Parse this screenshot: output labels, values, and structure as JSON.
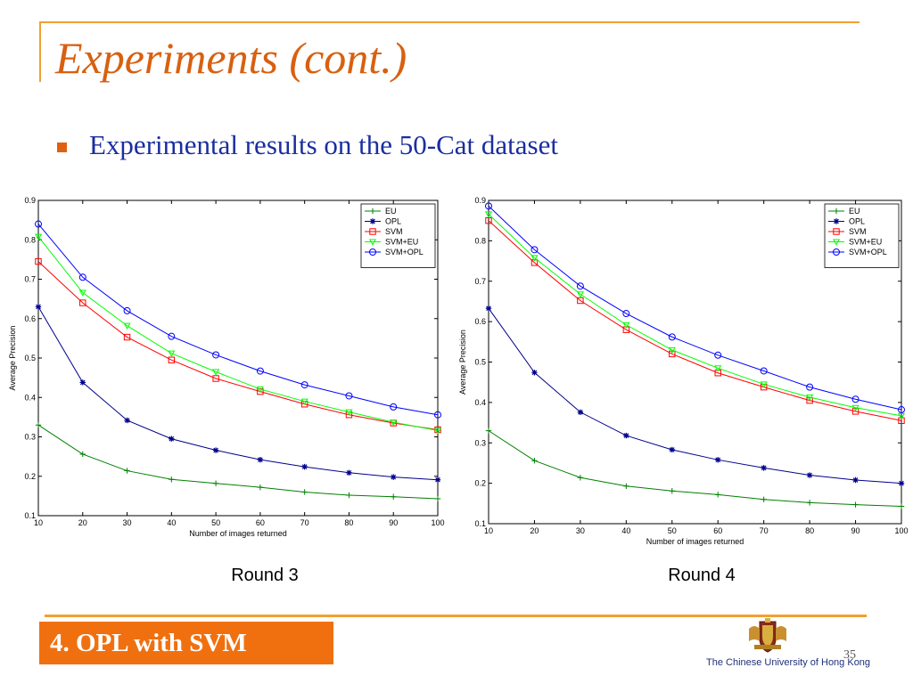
{
  "slide": {
    "title": "Experiments (cont.)",
    "bullet": "Experimental results on the 50-Cat dataset",
    "footer": "4. OPL with SVM",
    "university": "The Chinese University of Hong Kong",
    "page_number": "35"
  },
  "colors": {
    "accent_orange": "#f07010",
    "title_orange": "#d86010",
    "bullet_blue": "#1a2ea0"
  },
  "chart_data": [
    {
      "type": "line",
      "caption": "Round 3",
      "xlabel": "Number of images returned",
      "ylabel": "Average Precision",
      "x": [
        10,
        20,
        30,
        40,
        50,
        60,
        70,
        80,
        90,
        100
      ],
      "xlim": [
        10,
        100
      ],
      "ylim": [
        0.1,
        0.9
      ],
      "yticks": [
        "0.1",
        "0.2",
        "0.3",
        "0.4",
        "0.5",
        "0.6",
        "0.7",
        "0.8",
        "0.9"
      ],
      "xticks": [
        "10",
        "20",
        "30",
        "40",
        "50",
        "60",
        "70",
        "80",
        "90",
        "100"
      ],
      "legend_position": "top-right",
      "series": [
        {
          "name": "EU",
          "color": "#008000",
          "marker": "plus",
          "values": [
            0.33,
            0.256,
            0.214,
            0.192,
            0.182,
            0.172,
            0.16,
            0.152,
            0.148,
            0.143
          ]
        },
        {
          "name": "OPL",
          "color": "#00008b",
          "marker": "star",
          "values": [
            0.63,
            0.438,
            0.342,
            0.295,
            0.266,
            0.242,
            0.224,
            0.209,
            0.198,
            0.191
          ]
        },
        {
          "name": "SVM",
          "color": "#ff0000",
          "marker": "square",
          "values": [
            0.745,
            0.64,
            0.553,
            0.495,
            0.448,
            0.415,
            0.383,
            0.356,
            0.335,
            0.318
          ]
        },
        {
          "name": "SVM+EU",
          "color": "#00ff00",
          "marker": "triangle",
          "values": [
            0.808,
            0.666,
            0.582,
            0.512,
            0.465,
            0.421,
            0.39,
            0.363,
            0.337,
            0.316
          ]
        },
        {
          "name": "SVM+OPL",
          "color": "#0000ff",
          "marker": "circle",
          "values": [
            0.84,
            0.705,
            0.62,
            0.555,
            0.508,
            0.467,
            0.432,
            0.404,
            0.376,
            0.356
          ]
        }
      ]
    },
    {
      "type": "line",
      "caption": "Round 4",
      "xlabel": "Number of images returned",
      "ylabel": "Average Precision",
      "x": [
        10,
        20,
        30,
        40,
        50,
        60,
        70,
        80,
        90,
        100
      ],
      "xlim": [
        10,
        100
      ],
      "ylim": [
        0.1,
        0.9
      ],
      "yticks": [
        "0.1",
        "0.2",
        "0.3",
        "0.4",
        "0.5",
        "0.6",
        "0.7",
        "0.8",
        "0.9"
      ],
      "xticks": [
        "10",
        "20",
        "30",
        "40",
        "50",
        "60",
        "70",
        "80",
        "90",
        "100"
      ],
      "legend_position": "top-right",
      "series": [
        {
          "name": "EU",
          "color": "#008000",
          "marker": "plus",
          "values": [
            0.33,
            0.256,
            0.214,
            0.193,
            0.181,
            0.172,
            0.16,
            0.152,
            0.147,
            0.143
          ]
        },
        {
          "name": "OPL",
          "color": "#00008b",
          "marker": "star",
          "values": [
            0.633,
            0.474,
            0.376,
            0.318,
            0.283,
            0.258,
            0.238,
            0.22,
            0.208,
            0.2
          ]
        },
        {
          "name": "SVM",
          "color": "#ff0000",
          "marker": "square",
          "values": [
            0.85,
            0.746,
            0.652,
            0.58,
            0.52,
            0.473,
            0.438,
            0.405,
            0.378,
            0.355
          ]
        },
        {
          "name": "SVM+EU",
          "color": "#00ff00",
          "marker": "triangle",
          "values": [
            0.866,
            0.758,
            0.668,
            0.592,
            0.53,
            0.485,
            0.445,
            0.413,
            0.387,
            0.367
          ]
        },
        {
          "name": "SVM+OPL",
          "color": "#0000ff",
          "marker": "circle",
          "values": [
            0.886,
            0.778,
            0.688,
            0.62,
            0.562,
            0.517,
            0.478,
            0.438,
            0.408,
            0.382
          ]
        }
      ]
    }
  ]
}
